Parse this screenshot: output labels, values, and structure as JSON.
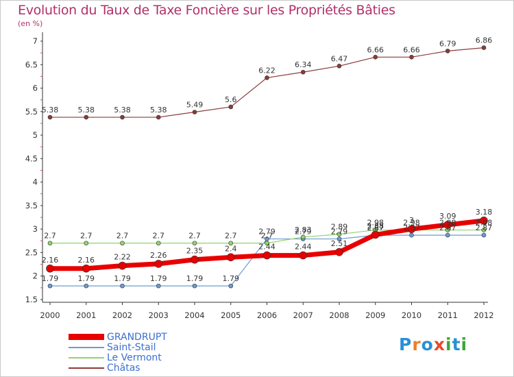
{
  "header": {
    "title": "Evolution du Taux de Taxe Foncière sur les Propriétés Bâties",
    "unit": "(en %)"
  },
  "brand": {
    "letters": [
      "P",
      "r",
      "o",
      "x",
      "i",
      "t",
      "i"
    ],
    "colors": [
      "#2a8fd6",
      "#e8822a",
      "#2a8fd6",
      "#e84a2a",
      "#3aa83a",
      "#2a8fd6",
      "#3aa83a"
    ]
  },
  "chart_data": {
    "type": "line",
    "title": "Evolution du Taux de Taxe Foncière sur les Propriétés Bâties",
    "ylabel": "(en %)",
    "xlabel": "",
    "x": [
      "2000",
      "2001",
      "2002",
      "2003",
      "2004",
      "2005",
      "2006",
      "2007",
      "2008",
      "2009",
      "2010",
      "2011",
      "2012"
    ],
    "ylim": [
      1.5,
      7
    ],
    "yticks": [
      "1.5",
      "2",
      "2.5",
      "3",
      "3.5",
      "4",
      "4.5",
      "5",
      "5.5",
      "6",
      "6.5",
      "7"
    ],
    "grid": false,
    "legend_position": "bottom-left",
    "series": [
      {
        "name": "GRANDRUPT",
        "color": "#e80000",
        "values": [
          2.16,
          2.16,
          2.22,
          2.26,
          2.35,
          2.4,
          2.44,
          2.44,
          2.51,
          2.88,
          3.0,
          3.09,
          3.18
        ],
        "labels": [
          "2.16",
          "2.16",
          "2.22",
          "2.26",
          "2.35",
          "2.4",
          "2.44",
          "2.44",
          "2.51",
          "2.88",
          "3",
          "3.09",
          "3.18"
        ]
      },
      {
        "name": "Saint-Stail",
        "color": "#6a9bd0",
        "values": [
          1.79,
          1.79,
          1.79,
          1.79,
          1.79,
          1.79,
          2.79,
          2.79,
          2.79,
          2.87,
          2.87,
          2.87,
          2.87
        ],
        "labels": [
          "1.79",
          "1.79",
          "1.79",
          "1.79",
          "1.79",
          "1.79",
          "2.79",
          "2.79",
          "2.79",
          "2.87",
          "2.87",
          "2.87",
          "2.87"
        ]
      },
      {
        "name": "Le Vermont",
        "color": "#8fd46a",
        "values": [
          2.7,
          2.7,
          2.7,
          2.7,
          2.7,
          2.7,
          2.7,
          2.83,
          2.89,
          2.98,
          2.98,
          2.98,
          2.98
        ],
        "labels": [
          "2.7",
          "2.7",
          "2.7",
          "2.7",
          "2.7",
          "2.7",
          "2.7",
          "2.83",
          "2.89",
          "2.98",
          "2.98",
          "2.98",
          "2.98"
        ]
      },
      {
        "name": "Châtas",
        "color": "#8a3a3a",
        "values": [
          5.38,
          5.38,
          5.38,
          5.38,
          5.49,
          5.6,
          6.22,
          6.34,
          6.47,
          6.66,
          6.66,
          6.79,
          6.86
        ],
        "labels": [
          "5.38",
          "5.38",
          "5.38",
          "5.38",
          "5.49",
          "5.6",
          "6.22",
          "6.34",
          "6.47",
          "6.66",
          "6.66",
          "6.79",
          "6.86"
        ]
      }
    ]
  }
}
